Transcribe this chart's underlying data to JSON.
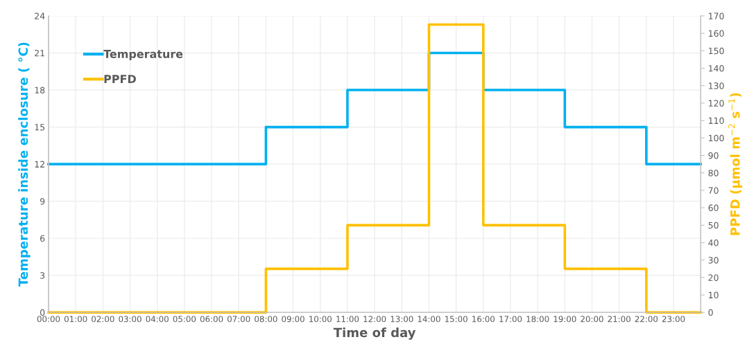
{
  "chart_data": {
    "type": "step",
    "xlabel": "Time of day",
    "ylabel": "Temperature inside enclosure ( °C)",
    "y2label": "PPFD (µmol m$^{−2}$ s$^{−1}$)",
    "x": [
      0,
      8,
      11,
      14,
      16,
      19,
      22,
      24
    ],
    "series": [
      {
        "name": "Temperature",
        "color": "#00b0f0",
        "values": [
          12,
          15,
          18,
          21,
          18,
          15,
          12,
          12
        ]
      },
      {
        "name": "PPFD",
        "color": "#ffc000",
        "axis": "y2",
        "values": [
          0,
          25,
          50,
          165,
          50,
          25,
          0,
          0
        ]
      }
    ],
    "xlim": [
      0,
      24
    ],
    "xticks": [
      {
        "value": 0,
        "label": "00:00"
      },
      {
        "value": 1,
        "label": "01:00"
      },
      {
        "value": 2,
        "label": "02:00"
      },
      {
        "value": 3,
        "label": "03:00"
      },
      {
        "value": 4,
        "label": "04:00"
      },
      {
        "value": 5,
        "label": "05:00"
      },
      {
        "value": 6,
        "label": "06:00"
      },
      {
        "value": 7,
        "label": "07:00"
      },
      {
        "value": 8,
        "label": "08:00"
      },
      {
        "value": 9,
        "label": "09:00"
      },
      {
        "value": 10,
        "label": "10:00"
      },
      {
        "value": 11,
        "label": "11:00"
      },
      {
        "value": 12,
        "label": "12:00"
      },
      {
        "value": 13,
        "label": "13:00"
      },
      {
        "value": 14,
        "label": "14:00"
      },
      {
        "value": 15,
        "label": "15:00"
      },
      {
        "value": 16,
        "label": "16:00"
      },
      {
        "value": 17,
        "label": "17:00"
      },
      {
        "value": 18,
        "label": "18:00"
      },
      {
        "value": 19,
        "label": "19:00"
      },
      {
        "value": 20,
        "label": "20:00"
      },
      {
        "value": 21,
        "label": "21:00"
      },
      {
        "value": 22,
        "label": "22:00"
      },
      {
        "value": 23,
        "label": "23:00"
      }
    ],
    "ylim": [
      0,
      24
    ],
    "yticks": [
      0,
      3,
      6,
      9,
      12,
      15,
      18,
      21,
      24
    ],
    "y2lim": [
      0,
      170
    ],
    "y2ticks": [
      0,
      10,
      20,
      30,
      40,
      50,
      60,
      70,
      80,
      90,
      100,
      110,
      120,
      130,
      140,
      150,
      160,
      170
    ],
    "grid": true,
    "legend": "top left",
    "line_style": "solid"
  }
}
